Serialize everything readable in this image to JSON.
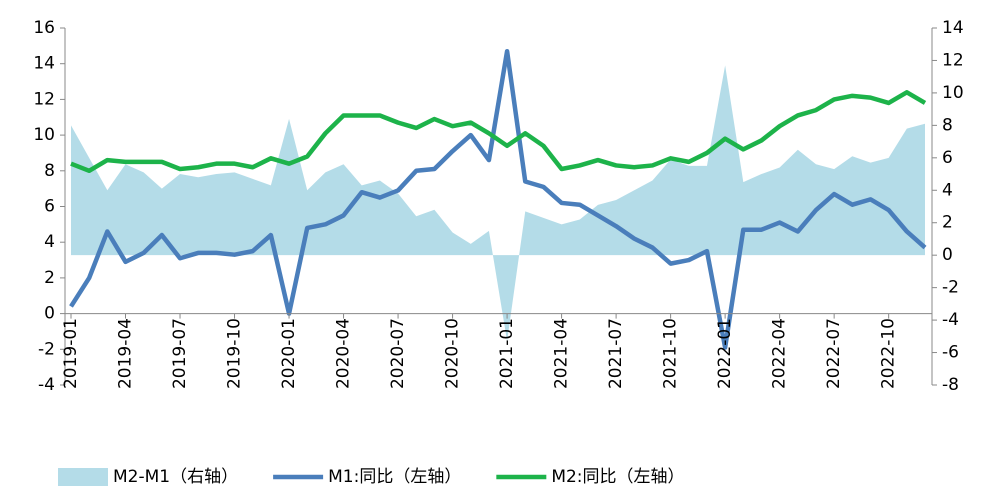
{
  "chart_data": {
    "type": "line",
    "categories": [
      "2019-01",
      null,
      null,
      "2019-04",
      null,
      null,
      "2019-07",
      null,
      null,
      "2019-10",
      null,
      null,
      "2020-01",
      null,
      null,
      "2020-04",
      null,
      null,
      "2020-07",
      null,
      null,
      "2020-10",
      null,
      null,
      "2021-01",
      null,
      null,
      "2021-04",
      null,
      null,
      "2021-07",
      null,
      null,
      "2021-10",
      null,
      null,
      "2022-01",
      null,
      null,
      "2022-04",
      null,
      null,
      "2022-07",
      null,
      null,
      "2022-10",
      null,
      null
    ],
    "series": [
      {
        "name": "M2-M1（右轴）",
        "type": "area",
        "axis": "y2",
        "color": "#b4dce8",
        "values": [
          8.0,
          6.0,
          4.0,
          5.6,
          5.1,
          4.1,
          5.0,
          4.8,
          5.0,
          5.1,
          4.7,
          4.3,
          8.4,
          4.0,
          5.1,
          5.6,
          4.3,
          4.6,
          3.8,
          2.4,
          2.8,
          1.4,
          0.7,
          1.5,
          -5.3,
          2.7,
          2.3,
          1.9,
          2.2,
          3.1,
          3.4,
          4.0,
          4.6,
          5.9,
          5.5,
          5.5,
          11.7,
          4.5,
          5.0,
          5.4,
          6.5,
          5.6,
          5.3,
          6.1,
          5.7,
          6.0,
          7.8,
          8.1
        ]
      },
      {
        "name": "M1:同比（左轴）",
        "type": "line",
        "color": "#4a7ebb",
        "values": [
          0.4,
          2.0,
          4.6,
          2.9,
          3.4,
          4.4,
          3.1,
          3.4,
          3.4,
          3.3,
          3.5,
          4.4,
          0.0,
          4.8,
          5.0,
          5.5,
          6.8,
          6.5,
          6.9,
          8.0,
          8.1,
          9.1,
          10.0,
          8.6,
          14.7,
          7.4,
          7.1,
          6.2,
          6.1,
          5.5,
          4.9,
          4.2,
          3.7,
          2.8,
          3.0,
          3.5,
          -1.9,
          4.7,
          4.7,
          5.1,
          4.6,
          5.8,
          6.7,
          6.1,
          6.4,
          5.8,
          4.6,
          3.7
        ]
      },
      {
        "name": "M2:同比（左轴）",
        "type": "line",
        "color": "#1db34a",
        "values": [
          8.4,
          8.0,
          8.6,
          8.5,
          8.5,
          8.5,
          8.1,
          8.2,
          8.4,
          8.4,
          8.2,
          8.7,
          8.4,
          8.8,
          10.1,
          11.1,
          11.1,
          11.1,
          10.7,
          10.4,
          10.9,
          10.5,
          10.7,
          10.1,
          9.4,
          10.1,
          9.4,
          8.1,
          8.3,
          8.6,
          8.3,
          8.2,
          8.3,
          8.7,
          8.5,
          9.0,
          9.8,
          9.2,
          9.7,
          10.5,
          11.1,
          11.4,
          12.0,
          12.2,
          12.1,
          11.8,
          12.4,
          11.8
        ]
      }
    ],
    "ylim": [
      -4,
      16
    ],
    "yticks": [
      -4,
      -2,
      0,
      2,
      4,
      6,
      8,
      10,
      12,
      14,
      16
    ],
    "y2lim": [
      -8,
      14
    ],
    "y2ticks": [
      -8,
      -6,
      -4,
      -2,
      0,
      2,
      4,
      6,
      8,
      10,
      12,
      14
    ],
    "legend": "bottom"
  }
}
